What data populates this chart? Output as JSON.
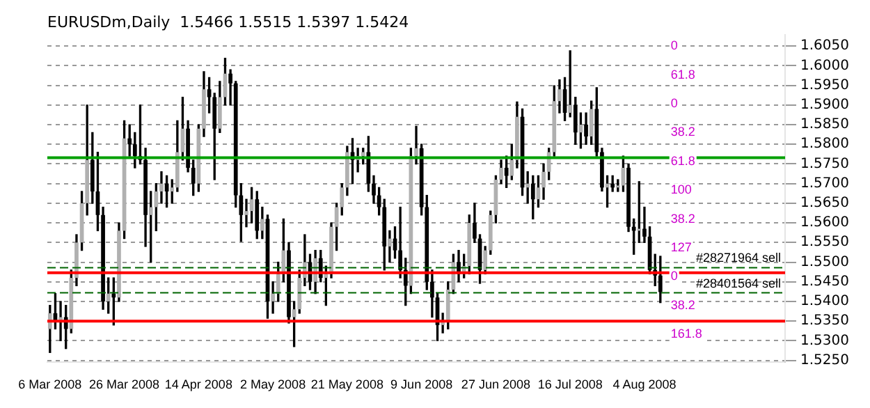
{
  "chart_data": {
    "type": "candlestick",
    "title": "EURUSDm,Daily  1.5466 1.5515 1.5397 1.5424",
    "categories": [
      "6 Mar 2008",
      null,
      null,
      null,
      null,
      null,
      null,
      null,
      null,
      null,
      null,
      null,
      null,
      null,
      "26 Mar 2008",
      null,
      null,
      null,
      null,
      null,
      null,
      null,
      null,
      null,
      null,
      null,
      null,
      null,
      "14 Apr 2008",
      null,
      null,
      null,
      null,
      null,
      null,
      null,
      null,
      null,
      null,
      null,
      null,
      null,
      "2 May 2008",
      null,
      null,
      null,
      null,
      null,
      null,
      null,
      null,
      null,
      null,
      null,
      null,
      null,
      "21 May 2008",
      null,
      null,
      null,
      null,
      null,
      null,
      null,
      null,
      null,
      null,
      null,
      null,
      null,
      "9 Jun 2008",
      null,
      null,
      null,
      null,
      null,
      null,
      null,
      null,
      null,
      null,
      null,
      null,
      null,
      "27 Jun 2008",
      null,
      null,
      null,
      null,
      null,
      null,
      null,
      null,
      null,
      null,
      null,
      null,
      null,
      "16 Jul 2008",
      null,
      null,
      null,
      null,
      null,
      null,
      null,
      null,
      null,
      null,
      null,
      null,
      null,
      "4 Aug 2008",
      null,
      null,
      null,
      null,
      null,
      null,
      null,
      null,
      null,
      null,
      null,
      null,
      null,
      null,
      null,
      null,
      null,
      null,
      null,
      null,
      null,
      null,
      null,
      null,
      null,
      null
    ],
    "ohlc": [
      [
        1.533,
        1.539,
        1.527,
        1.537
      ],
      [
        1.537,
        1.542,
        1.533,
        1.535
      ],
      [
        1.535,
        1.54,
        1.53,
        1.536
      ],
      [
        1.536,
        1.539,
        1.528,
        1.533
      ],
      [
        1.533,
        1.548,
        1.532,
        1.546
      ],
      [
        1.546,
        1.557,
        1.544,
        1.555
      ],
      [
        1.555,
        1.568,
        1.553,
        1.565
      ],
      [
        1.565,
        1.59,
        1.562,
        1.576
      ],
      [
        1.576,
        1.583,
        1.565,
        1.568
      ],
      [
        1.568,
        1.578,
        1.558,
        1.562
      ],
      [
        1.562,
        1.564,
        1.538,
        1.54
      ],
      [
        1.54,
        1.546,
        1.537,
        1.542
      ],
      [
        1.542,
        1.546,
        1.534,
        1.541
      ],
      [
        1.541,
        1.56,
        1.54,
        1.558
      ],
      [
        1.558,
        1.586,
        1.556,
        1.5815
      ],
      [
        1.5815,
        1.585,
        1.577,
        1.58
      ],
      [
        1.58,
        1.583,
        1.574,
        1.577
      ],
      [
        1.577,
        1.59,
        1.575,
        1.576
      ],
      [
        1.576,
        1.579,
        1.554,
        1.562
      ],
      [
        1.562,
        1.568,
        1.55,
        1.564
      ],
      [
        1.564,
        1.57,
        1.558,
        1.568
      ],
      [
        1.568,
        1.573,
        1.565,
        1.57
      ],
      [
        1.57,
        1.572,
        1.564,
        1.568
      ],
      [
        1.568,
        1.571,
        1.565,
        1.569
      ],
      [
        1.569,
        1.586,
        1.568,
        1.578
      ],
      [
        1.578,
        1.592,
        1.576,
        1.584
      ],
      [
        1.584,
        1.586,
        1.573,
        1.574
      ],
      [
        1.574,
        1.576,
        1.567,
        1.57
      ],
      [
        1.57,
        1.585,
        1.568,
        1.584
      ],
      [
        1.584,
        1.5985,
        1.582,
        1.594
      ],
      [
        1.594,
        1.597,
        1.588,
        1.592
      ],
      [
        1.592,
        1.593,
        1.571,
        1.584
      ],
      [
        1.584,
        1.596,
        1.583,
        1.592
      ],
      [
        1.592,
        1.6019,
        1.59,
        1.598
      ],
      [
        1.598,
        1.599,
        1.59,
        1.5955
      ],
      [
        1.5955,
        1.596,
        1.564,
        1.567
      ],
      [
        1.567,
        1.57,
        1.5553,
        1.562
      ],
      [
        1.562,
        1.566,
        1.559,
        1.563
      ],
      [
        1.563,
        1.569,
        1.56,
        1.566
      ],
      [
        1.566,
        1.568,
        1.556,
        1.558
      ],
      [
        1.558,
        1.564,
        1.556,
        1.561
      ],
      [
        1.561,
        1.562,
        1.5357,
        1.54
      ],
      [
        1.54,
        1.545,
        1.537,
        1.542
      ],
      [
        1.542,
        1.55,
        1.54,
        1.547
      ],
      [
        1.547,
        1.561,
        1.545,
        1.553
      ],
      [
        1.553,
        1.555,
        1.5345,
        1.536
      ],
      [
        1.536,
        1.54,
        1.5285,
        1.538
      ],
      [
        1.538,
        1.548,
        1.537,
        1.546
      ],
      [
        1.546,
        1.557,
        1.544,
        1.55
      ],
      [
        1.55,
        1.552,
        1.543,
        1.545
      ],
      [
        1.545,
        1.553,
        1.542,
        1.551
      ],
      [
        1.551,
        1.553,
        1.545,
        1.546
      ],
      [
        1.546,
        1.549,
        1.539,
        1.547
      ],
      [
        1.547,
        1.56,
        1.546,
        1.559
      ],
      [
        1.559,
        1.565,
        1.553,
        1.564
      ],
      [
        1.564,
        1.57,
        1.562,
        1.569
      ],
      [
        1.569,
        1.5795,
        1.567,
        1.578
      ],
      [
        1.578,
        1.5815,
        1.57,
        1.576
      ],
      [
        1.576,
        1.579,
        1.573,
        1.577
      ],
      [
        1.577,
        1.579,
        1.575,
        1.578
      ],
      [
        1.578,
        1.582,
        1.568,
        1.57
      ],
      [
        1.57,
        1.572,
        1.565,
        1.567
      ],
      [
        1.567,
        1.569,
        1.562,
        1.564
      ],
      [
        1.564,
        1.566,
        1.548,
        1.554
      ],
      [
        1.554,
        1.558,
        1.55,
        1.556
      ],
      [
        1.556,
        1.559,
        1.551,
        1.553
      ],
      [
        1.553,
        1.564,
        1.546,
        1.548
      ],
      [
        1.548,
        1.551,
        1.539,
        1.544
      ],
      [
        1.544,
        1.579,
        1.542,
        1.577
      ],
      [
        1.577,
        1.5846,
        1.575,
        1.579
      ],
      [
        1.579,
        1.58,
        1.562,
        1.564
      ],
      [
        1.564,
        1.567,
        1.543,
        1.545
      ],
      [
        1.545,
        1.548,
        1.536,
        1.541
      ],
      [
        1.541,
        1.542,
        1.53,
        1.534
      ],
      [
        1.534,
        1.537,
        1.532,
        1.535
      ],
      [
        1.535,
        1.545,
        1.533,
        1.543
      ],
      [
        1.543,
        1.552,
        1.542,
        1.55
      ],
      [
        1.55,
        1.553,
        1.545,
        1.547
      ],
      [
        1.547,
        1.552,
        1.546,
        1.549
      ],
      [
        1.549,
        1.562,
        1.547,
        1.56
      ],
      [
        1.56,
        1.565,
        1.555,
        1.556
      ],
      [
        1.556,
        1.557,
        1.5446,
        1.548
      ],
      [
        1.548,
        1.554,
        1.547,
        1.553
      ],
      [
        1.553,
        1.563,
        1.552,
        1.562
      ],
      [
        1.562,
        1.572,
        1.56,
        1.571
      ],
      [
        1.571,
        1.576,
        1.57,
        1.574
      ],
      [
        1.574,
        1.577,
        1.569,
        1.572
      ],
      [
        1.572,
        1.58,
        1.571,
        1.576
      ],
      [
        1.576,
        1.5908,
        1.574,
        1.587
      ],
      [
        1.587,
        1.589,
        1.567,
        1.569
      ],
      [
        1.569,
        1.573,
        1.565,
        1.57
      ],
      [
        1.57,
        1.572,
        1.561,
        1.566
      ],
      [
        1.566,
        1.572,
        1.564,
        1.569
      ],
      [
        1.569,
        1.575,
        1.566,
        1.573
      ],
      [
        1.573,
        1.579,
        1.571,
        1.578
      ],
      [
        1.578,
        1.5949,
        1.577,
        1.591
      ],
      [
        1.591,
        1.5964,
        1.588,
        1.594
      ],
      [
        1.594,
        1.597,
        1.586,
        1.588
      ],
      [
        1.588,
        1.6038,
        1.587,
        1.59
      ],
      [
        1.59,
        1.592,
        1.58,
        1.583
      ],
      [
        1.583,
        1.588,
        1.579,
        1.585
      ],
      [
        1.585,
        1.588,
        1.58,
        1.582
      ],
      [
        1.582,
        1.591,
        1.58,
        1.589
      ],
      [
        1.589,
        1.5944,
        1.577,
        1.578
      ],
      [
        1.578,
        1.579,
        1.5681,
        1.569
      ],
      [
        1.569,
        1.572,
        1.564,
        1.57
      ],
      [
        1.57,
        1.572,
        1.568,
        1.569
      ],
      [
        1.569,
        1.571,
        1.568,
        1.5695
      ],
      [
        1.5695,
        1.577,
        1.568,
        1.574
      ],
      [
        1.574,
        1.575,
        1.5578,
        1.559
      ],
      [
        1.559,
        1.561,
        1.552,
        1.558
      ],
      [
        1.558,
        1.5705,
        1.555,
        1.5585
      ],
      [
        1.5585,
        1.564,
        1.555,
        1.5565
      ],
      [
        1.5565,
        1.559,
        1.547,
        1.548
      ],
      [
        1.548,
        1.552,
        1.544,
        1.5466
      ],
      [
        1.5466,
        1.5515,
        1.5397,
        1.5424
      ],
      null,
      null,
      null,
      null,
      null,
      null,
      null,
      null,
      null,
      null,
      null,
      null,
      null,
      null,
      null,
      null,
      null,
      null,
      null,
      null,
      null,
      null,
      null
    ],
    "ylim": [
      1.5245,
      1.6078
    ],
    "yticks": [
      {
        "value": 1.525,
        "label": "1.5250"
      },
      {
        "value": 1.53,
        "label": "1.5300"
      },
      {
        "value": 1.535,
        "label": "1.5350"
      },
      {
        "value": 1.54,
        "label": "1.5400"
      },
      {
        "value": 1.545,
        "label": "1.5450"
      },
      {
        "value": 1.55,
        "label": "1.5500"
      },
      {
        "value": 1.555,
        "label": "1.5550"
      },
      {
        "value": 1.56,
        "label": "1.5600"
      },
      {
        "value": 1.565,
        "label": "1.5650"
      },
      {
        "value": 1.57,
        "label": "1.5700"
      },
      {
        "value": 1.575,
        "label": "1.5750"
      },
      {
        "value": 1.58,
        "label": "1.5800"
      },
      {
        "value": 1.585,
        "label": "1.5850"
      },
      {
        "value": 1.59,
        "label": "1.5900"
      },
      {
        "value": 1.595,
        "label": "1.5950"
      },
      {
        "value": 1.6,
        "label": "1.6000"
      },
      {
        "value": 1.605,
        "label": "1.6050"
      }
    ],
    "grid": "y",
    "legend": false,
    "ref_lines": [
      {
        "axis": "y",
        "value": 1.535,
        "label": null,
        "color": "#ff0000",
        "line_style": "solid"
      },
      {
        "axis": "y",
        "value": 1.5473,
        "label": null,
        "color": "#ff0000",
        "line_style": "solid"
      },
      {
        "axis": "y",
        "value": 1.5766,
        "label": null,
        "color": "#00a000",
        "line_style": "solid"
      },
      {
        "axis": "y",
        "value": 1.5486,
        "label": "#28271964 sell",
        "color": "#006400",
        "line_style": "dashed"
      },
      {
        "axis": "y",
        "value": 1.5422,
        "label": "#28401564 sell",
        "color": "#006400",
        "line_style": "dashed"
      }
    ],
    "annotations": [
      "0",
      "61.8",
      "0",
      "38.2",
      "61.8",
      "100",
      "38.2",
      "127",
      "0",
      "38.2",
      "161.8"
    ]
  }
}
